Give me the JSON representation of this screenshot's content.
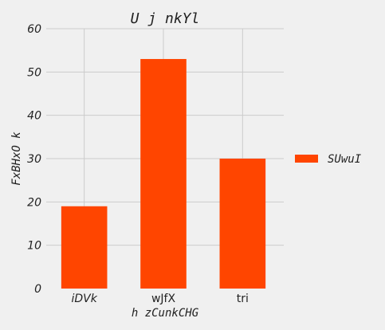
{
  "chart_data": {
    "type": "bar",
    "title": "U j nkYl",
    "xlabel": "h zCunkCHG",
    "ylabel": "FxBHxO k",
    "categories": [
      "iDVk",
      "wJfX",
      "tri"
    ],
    "series": [
      {
        "name": "SUwuI",
        "values": [
          19,
          53,
          30
        ],
        "color": "#ff4500"
      }
    ],
    "ylim": [
      0,
      60
    ],
    "yticks": [
      0,
      10,
      20,
      30,
      40,
      50,
      60
    ],
    "grid": true,
    "legend": "right"
  }
}
